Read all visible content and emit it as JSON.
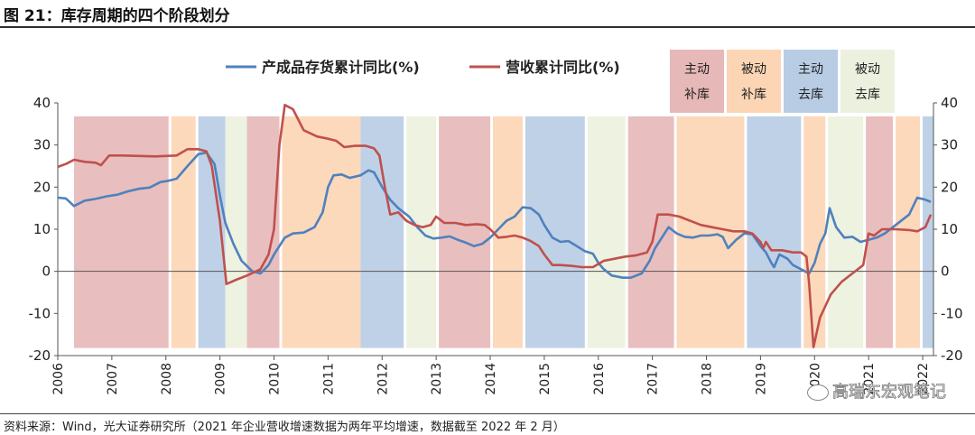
{
  "title": "图 21：库存周期的四个阶段划分",
  "source": "资料来源：Wind，光大证券研究所（2021 年企业营收增速数据为两年平均增速，数据截至 2022 年 2 月）",
  "watermark": "高瑞东宏观笔记",
  "watermark_icon": "wechat-icon",
  "chart_data": {
    "type": "line",
    "xlabel": "",
    "ylabel": "",
    "ylim": [
      -20,
      40
    ],
    "y_ticks": [
      40,
      30,
      20,
      10,
      0,
      -10,
      -20
    ],
    "x_range": [
      2006.0,
      2022.2
    ],
    "x_tick_labels": [
      "2006",
      "2007",
      "2008",
      "2009",
      "2010",
      "2011",
      "2012",
      "2013",
      "2014",
      "2015",
      "2016",
      "2017",
      "2018",
      "2019",
      "2020",
      "2021",
      "2022"
    ],
    "x_tick_positions": [
      2006,
      2007,
      2008,
      2009,
      2010,
      2011,
      2012,
      2013,
      2014,
      2015,
      2016,
      2017,
      2018,
      2019,
      2020,
      2021,
      2022
    ],
    "legend": {
      "placement": "top"
    },
    "series": [
      {
        "name": "产成品存货累计同比(%)",
        "color": "#4f81bd",
        "points": [
          [
            2006.0,
            17.5
          ],
          [
            2006.15,
            17.3
          ],
          [
            2006.3,
            15.5
          ],
          [
            2006.5,
            16.8
          ],
          [
            2006.7,
            17.2
          ],
          [
            2006.9,
            17.8
          ],
          [
            2007.1,
            18.2
          ],
          [
            2007.3,
            19.0
          ],
          [
            2007.5,
            19.6
          ],
          [
            2007.7,
            19.9
          ],
          [
            2007.9,
            21.2
          ],
          [
            2008.05,
            21.5
          ],
          [
            2008.2,
            22.0
          ],
          [
            2008.4,
            25.0
          ],
          [
            2008.6,
            27.8
          ],
          [
            2008.75,
            28.2
          ],
          [
            2008.9,
            25.5
          ],
          [
            2009.0,
            18.0
          ],
          [
            2009.1,
            11.5
          ],
          [
            2009.25,
            6.5
          ],
          [
            2009.4,
            2.5
          ],
          [
            2009.6,
            0.0
          ],
          [
            2009.75,
            -0.5
          ],
          [
            2009.9,
            1.5
          ],
          [
            2010.0,
            4.0
          ],
          [
            2010.2,
            8.0
          ],
          [
            2010.35,
            9.0
          ],
          [
            2010.55,
            9.2
          ],
          [
            2010.75,
            10.5
          ],
          [
            2010.9,
            14.0
          ],
          [
            2011.0,
            20.0
          ],
          [
            2011.1,
            22.8
          ],
          [
            2011.25,
            23.0
          ],
          [
            2011.4,
            22.2
          ],
          [
            2011.6,
            22.8
          ],
          [
            2011.75,
            24.0
          ],
          [
            2011.85,
            23.5
          ],
          [
            2012.0,
            20.0
          ],
          [
            2012.15,
            17.0
          ],
          [
            2012.3,
            15.0
          ],
          [
            2012.5,
            13.0
          ],
          [
            2012.65,
            10.5
          ],
          [
            2012.8,
            8.5
          ],
          [
            2012.95,
            7.8
          ],
          [
            2013.1,
            8.0
          ],
          [
            2013.25,
            8.3
          ],
          [
            2013.4,
            7.5
          ],
          [
            2013.55,
            6.8
          ],
          [
            2013.7,
            6.0
          ],
          [
            2013.85,
            6.5
          ],
          [
            2014.0,
            8.0
          ],
          [
            2014.15,
            10.0
          ],
          [
            2014.3,
            12.0
          ],
          [
            2014.45,
            13.0
          ],
          [
            2014.6,
            15.2
          ],
          [
            2014.75,
            15.0
          ],
          [
            2014.9,
            13.5
          ],
          [
            2015.0,
            11.0
          ],
          [
            2015.15,
            8.0
          ],
          [
            2015.3,
            7.0
          ],
          [
            2015.45,
            7.2
          ],
          [
            2015.6,
            6.0
          ],
          [
            2015.75,
            4.8
          ],
          [
            2015.9,
            4.2
          ],
          [
            2016.0,
            2.0
          ],
          [
            2016.1,
            0.5
          ],
          [
            2016.25,
            -1.0
          ],
          [
            2016.45,
            -1.5
          ],
          [
            2016.6,
            -1.5
          ],
          [
            2016.8,
            -0.5
          ],
          [
            2016.95,
            2.5
          ],
          [
            2017.05,
            5.5
          ],
          [
            2017.15,
            7.5
          ],
          [
            2017.3,
            10.5
          ],
          [
            2017.45,
            9.0
          ],
          [
            2017.6,
            8.2
          ],
          [
            2017.75,
            8.0
          ],
          [
            2017.9,
            8.5
          ],
          [
            2018.05,
            8.5
          ],
          [
            2018.2,
            8.8
          ],
          [
            2018.3,
            8.2
          ],
          [
            2018.4,
            5.5
          ],
          [
            2018.55,
            7.5
          ],
          [
            2018.7,
            9.0
          ],
          [
            2018.85,
            8.8
          ],
          [
            2019.0,
            6.0
          ],
          [
            2019.1,
            4.5
          ],
          [
            2019.2,
            2.0
          ],
          [
            2019.25,
            1.0
          ],
          [
            2019.35,
            4.0
          ],
          [
            2019.5,
            3.0
          ],
          [
            2019.6,
            1.5
          ],
          [
            2019.75,
            0.5
          ],
          [
            2019.9,
            -0.5
          ],
          [
            2020.0,
            2.0
          ],
          [
            2020.1,
            6.5
          ],
          [
            2020.2,
            9.0
          ],
          [
            2020.28,
            15.0
          ],
          [
            2020.4,
            10.5
          ],
          [
            2020.55,
            8.0
          ],
          [
            2020.7,
            8.2
          ],
          [
            2020.85,
            7.0
          ],
          [
            2021.0,
            7.5
          ],
          [
            2021.15,
            8.0
          ],
          [
            2021.3,
            9.0
          ],
          [
            2021.45,
            10.5
          ],
          [
            2021.6,
            12.0
          ],
          [
            2021.75,
            13.5
          ],
          [
            2021.9,
            17.5
          ],
          [
            2022.05,
            17.0
          ],
          [
            2022.15,
            16.5
          ]
        ]
      },
      {
        "name": "营收累计同比(%)",
        "color": "#c0504d",
        "points": [
          [
            2006.0,
            24.8
          ],
          [
            2006.15,
            25.5
          ],
          [
            2006.3,
            26.5
          ],
          [
            2006.5,
            26.0
          ],
          [
            2006.7,
            25.8
          ],
          [
            2006.8,
            25.2
          ],
          [
            2006.95,
            27.5
          ],
          [
            2007.2,
            27.5
          ],
          [
            2007.5,
            27.4
          ],
          [
            2007.8,
            27.3
          ],
          [
            2008.0,
            27.4
          ],
          [
            2008.2,
            27.5
          ],
          [
            2008.4,
            29.0
          ],
          [
            2008.6,
            29.0
          ],
          [
            2008.75,
            28.5
          ],
          [
            2008.85,
            25.0
          ],
          [
            2009.0,
            12.0
          ],
          [
            2009.12,
            -3.0
          ],
          [
            2009.3,
            -2.0
          ],
          [
            2009.5,
            -1.0
          ],
          [
            2009.75,
            0.5
          ],
          [
            2009.9,
            4.0
          ],
          [
            2010.0,
            10.0
          ],
          [
            2010.1,
            30.0
          ],
          [
            2010.2,
            39.5
          ],
          [
            2010.35,
            38.5
          ],
          [
            2010.55,
            33.5
          ],
          [
            2010.8,
            32.0
          ],
          [
            2011.0,
            31.5
          ],
          [
            2011.15,
            31.0
          ],
          [
            2011.3,
            29.5
          ],
          [
            2011.5,
            29.8
          ],
          [
            2011.7,
            29.8
          ],
          [
            2011.85,
            29.2
          ],
          [
            2011.95,
            27.5
          ],
          [
            2012.05,
            20.0
          ],
          [
            2012.15,
            13.5
          ],
          [
            2012.3,
            14.0
          ],
          [
            2012.45,
            12.0
          ],
          [
            2012.6,
            11.0
          ],
          [
            2012.75,
            10.5
          ],
          [
            2012.9,
            11.0
          ],
          [
            2013.0,
            13.0
          ],
          [
            2013.15,
            11.5
          ],
          [
            2013.35,
            11.5
          ],
          [
            2013.55,
            11.0
          ],
          [
            2013.75,
            11.2
          ],
          [
            2013.9,
            11.0
          ],
          [
            2014.0,
            10.0
          ],
          [
            2014.15,
            8.0
          ],
          [
            2014.3,
            8.2
          ],
          [
            2014.45,
            8.5
          ],
          [
            2014.6,
            8.0
          ],
          [
            2014.75,
            7.2
          ],
          [
            2014.9,
            6.0
          ],
          [
            2015.0,
            4.0
          ],
          [
            2015.15,
            1.5
          ],
          [
            2015.3,
            1.5
          ],
          [
            2015.5,
            1.3
          ],
          [
            2015.7,
            1.0
          ],
          [
            2015.9,
            1.0
          ],
          [
            2016.1,
            2.5
          ],
          [
            2016.3,
            3.0
          ],
          [
            2016.5,
            3.5
          ],
          [
            2016.7,
            3.8
          ],
          [
            2016.9,
            4.5
          ],
          [
            2017.0,
            7.0
          ],
          [
            2017.1,
            13.5
          ],
          [
            2017.3,
            13.5
          ],
          [
            2017.5,
            13.0
          ],
          [
            2017.7,
            12.0
          ],
          [
            2017.9,
            11.0
          ],
          [
            2018.1,
            10.5
          ],
          [
            2018.3,
            10.0
          ],
          [
            2018.5,
            9.5
          ],
          [
            2018.7,
            9.5
          ],
          [
            2018.85,
            9.0
          ],
          [
            2019.0,
            7.0
          ],
          [
            2019.05,
            5.5
          ],
          [
            2019.1,
            7.0
          ],
          [
            2019.2,
            5.0
          ],
          [
            2019.4,
            5.0
          ],
          [
            2019.6,
            4.5
          ],
          [
            2019.75,
            4.5
          ],
          [
            2019.85,
            3.5
          ],
          [
            2019.9,
            -3.0
          ],
          [
            2019.98,
            -18.0
          ],
          [
            2020.1,
            -11.0
          ],
          [
            2020.3,
            -5.5
          ],
          [
            2020.5,
            -2.5
          ],
          [
            2020.7,
            -0.5
          ],
          [
            2020.9,
            1.5
          ],
          [
            2021.0,
            9.0
          ],
          [
            2021.1,
            8.5
          ],
          [
            2021.25,
            10.0
          ],
          [
            2021.5,
            10.0
          ],
          [
            2021.75,
            9.8
          ],
          [
            2021.9,
            9.5
          ],
          [
            2022.05,
            10.5
          ],
          [
            2022.15,
            13.5
          ]
        ]
      }
    ],
    "phase_legend": [
      {
        "line1": "主动",
        "line2": "补库",
        "color": "#e6b8b7"
      },
      {
        "line1": "被动",
        "line2": "补库",
        "color": "#fcd5b4"
      },
      {
        "line1": "主动",
        "line2": "去库",
        "color": "#b8cce4"
      },
      {
        "line1": "被动",
        "line2": "去库",
        "color": "#ebf1de"
      }
    ],
    "phases": [
      {
        "type": 0,
        "start": 2006.3,
        "end": 2008.05
      },
      {
        "type": 1,
        "start": 2008.1,
        "end": 2008.55
      },
      {
        "type": 2,
        "start": 2008.6,
        "end": 2009.1
      },
      {
        "type": 3,
        "start": 2009.1,
        "end": 2009.5
      },
      {
        "type": 0,
        "start": 2009.5,
        "end": 2010.1
      },
      {
        "type": 1,
        "start": 2010.15,
        "end": 2011.6
      },
      {
        "type": 2,
        "start": 2011.6,
        "end": 2012.4
      },
      {
        "type": 3,
        "start": 2012.45,
        "end": 2013.0
      },
      {
        "type": 0,
        "start": 2013.05,
        "end": 2014.0
      },
      {
        "type": 1,
        "start": 2014.05,
        "end": 2014.6
      },
      {
        "type": 2,
        "start": 2014.65,
        "end": 2015.75
      },
      {
        "type": 3,
        "start": 2015.8,
        "end": 2016.5
      },
      {
        "type": 0,
        "start": 2016.55,
        "end": 2017.4
      },
      {
        "type": 1,
        "start": 2017.45,
        "end": 2018.7
      },
      {
        "type": 2,
        "start": 2018.75,
        "end": 2019.75
      },
      {
        "type": 1,
        "start": 2019.8,
        "end": 2020.2
      },
      {
        "type": 3,
        "start": 2020.25,
        "end": 2020.9
      },
      {
        "type": 0,
        "start": 2020.95,
        "end": 2021.45
      },
      {
        "type": 1,
        "start": 2021.5,
        "end": 2021.95
      },
      {
        "type": 2,
        "start": 2022.0,
        "end": 2022.2
      }
    ]
  }
}
